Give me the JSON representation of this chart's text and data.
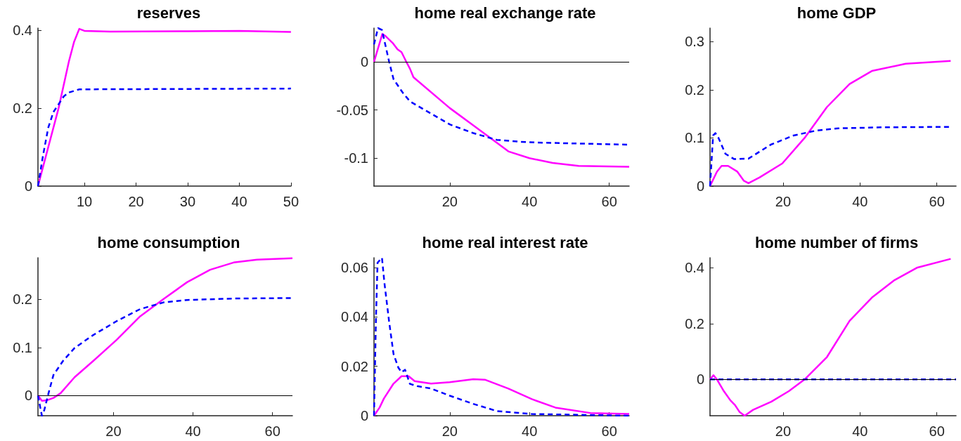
{
  "chart_data": [
    {
      "type": "line",
      "title": "reserves",
      "xlim": [
        1,
        50
      ],
      "xticks": [
        10,
        20,
        30,
        40,
        50
      ],
      "ylim": [
        0,
        0.405
      ],
      "yticks": [
        0,
        0.2,
        0.4
      ],
      "grid": false,
      "marker": "none",
      "series": [
        {
          "color": "#ff00ff",
          "line_style": "solid",
          "x": [
            1,
            3,
            5,
            7,
            8,
            9,
            10,
            15,
            30,
            40,
            50
          ],
          "values": [
            0,
            0.1,
            0.2,
            0.32,
            0.37,
            0.403,
            0.398,
            0.396,
            0.397,
            0.398,
            0.395
          ]
        },
        {
          "color": "#0000ff",
          "line_style": "dashed",
          "x": [
            1,
            2,
            3,
            4,
            5,
            6,
            7,
            9,
            50
          ],
          "values": [
            0,
            0.08,
            0.15,
            0.19,
            0.21,
            0.23,
            0.24,
            0.248,
            0.25
          ]
        }
      ]
    },
    {
      "type": "line",
      "title": "home real exchange rate",
      "xlim": [
        1,
        65
      ],
      "xticks": [
        20,
        40,
        60
      ],
      "ylim": [
        -0.129,
        0.035
      ],
      "yticks": [
        -0.1,
        -0.05,
        0
      ],
      "grid": false,
      "marker": "none",
      "ref_lines": [
        {
          "axis": "y",
          "value": 0,
          "color": "#000000"
        }
      ],
      "series": [
        {
          "color": "#ff00ff",
          "line_style": "solid",
          "x": [
            1,
            3.1,
            3.8,
            5.8,
            6.9,
            7.9,
            9.1,
            10,
            10.9,
            20,
            25.9,
            31.8,
            34.7,
            40,
            45.8,
            52.3,
            65
          ],
          "values": [
            0,
            0.029,
            0.027,
            0.019,
            0.013,
            0.01,
            0,
            -0.007,
            -0.016,
            -0.048,
            -0.066,
            -0.084,
            -0.093,
            -0.1,
            -0.105,
            -0.108,
            -0.109
          ]
        },
        {
          "color": "#0000ff",
          "line_style": "dashed",
          "x": [
            1,
            2,
            3,
            4.8,
            5.9,
            8.2,
            10,
            12.9,
            20,
            25.9,
            31.8,
            37.6,
            43.5,
            65
          ],
          "values": [
            0.018,
            0.035,
            0.033,
            0,
            -0.018,
            -0.032,
            -0.041,
            -0.048,
            -0.065,
            -0.074,
            -0.081,
            -0.083,
            -0.084,
            -0.086
          ]
        }
      ]
    },
    {
      "type": "line",
      "title": "home GDP",
      "xlim": [
        1,
        65
      ],
      "xticks": [
        20,
        40,
        60
      ],
      "ylim": [
        0,
        0.328
      ],
      "yticks": [
        0,
        0.1,
        0.2,
        0.3
      ],
      "grid": false,
      "marker": "none",
      "series": [
        {
          "color": "#ff00ff",
          "line_style": "solid",
          "x": [
            1,
            2.8,
            4,
            5.7,
            8.1,
            9.8,
            11,
            13.9,
            19.8,
            25.6,
            31.4,
            37.3,
            43.1,
            51.9,
            63.6
          ],
          "values": [
            0,
            0.03,
            0.042,
            0.042,
            0.03,
            0.011,
            0.006,
            0.018,
            0.047,
            0.1,
            0.164,
            0.212,
            0.239,
            0.254,
            0.26
          ]
        },
        {
          "color": "#0000ff",
          "line_style": "dashed",
          "x": [
            1,
            1.8,
            2.4,
            3.2,
            5,
            7.3,
            11,
            16.8,
            22.7,
            28.5,
            34.4,
            46,
            63.6
          ],
          "values": [
            0,
            0.105,
            0.11,
            0.1,
            0.067,
            0.056,
            0.057,
            0.086,
            0.105,
            0.115,
            0.12,
            0.122,
            0.123
          ]
        }
      ]
    },
    {
      "type": "line",
      "title": "home consumption",
      "xlim": [
        1,
        65
      ],
      "xticks": [
        20,
        40,
        60
      ],
      "ylim": [
        -0.042,
        0.287
      ],
      "yticks": [
        0,
        0.1,
        0.2
      ],
      "grid": false,
      "marker": "none",
      "ref_lines": [
        {
          "axis": "y",
          "value": 0,
          "color": "#000000"
        }
      ],
      "series": [
        {
          "color": "#ff00ff",
          "line_style": "solid",
          "x": [
            1,
            2,
            3.2,
            4.9,
            6.7,
            10.2,
            14.9,
            20.8,
            26.7,
            32.6,
            38.5,
            44.3,
            50.2,
            56.1,
            65
          ],
          "values": [
            0,
            -0.011,
            -0.01,
            -0.005,
            0.005,
            0.038,
            0.072,
            0.116,
            0.165,
            0.201,
            0.236,
            0.262,
            0.277,
            0.283,
            0.286
          ]
        },
        {
          "color": "#0000ff",
          "line_style": "dashed",
          "x": [
            1,
            1.7,
            2,
            2.6,
            3.5,
            4.9,
            7.3,
            10.2,
            14.9,
            20.8,
            26.7,
            32.6,
            38.5,
            50.2,
            65
          ],
          "values": [
            0,
            -0.03,
            -0.042,
            -0.03,
            0,
            0.043,
            0.072,
            0.099,
            0.126,
            0.155,
            0.18,
            0.194,
            0.199,
            0.202,
            0.203
          ]
        }
      ]
    },
    {
      "type": "line",
      "title": "home real interest rate",
      "xlim": [
        1,
        65
      ],
      "xticks": [
        20,
        40,
        60
      ],
      "ylim": [
        0,
        0.064
      ],
      "yticks": [
        0,
        0.02,
        0.04,
        0.06
      ],
      "grid": false,
      "marker": "none",
      "series": [
        {
          "color": "#ff00ff",
          "line_style": "solid",
          "x": [
            1,
            2.4,
            3.5,
            5.9,
            7.9,
            9.7,
            11.2,
            15.3,
            20,
            25.9,
            28.8,
            34.7,
            40.6,
            46.5,
            55.3,
            65
          ],
          "values": [
            0,
            0.0033,
            0.007,
            0.013,
            0.016,
            0.016,
            0.014,
            0.013,
            0.0136,
            0.0148,
            0.0146,
            0.011,
            0.0067,
            0.0033,
            0.0011,
            0.0007
          ]
        },
        {
          "color": "#0000ff",
          "line_style": "dashed",
          "x": [
            1,
            1.5,
            1.9,
            3,
            3.6,
            4.8,
            5.9,
            7.1,
            7.9,
            8.8,
            10,
            11.8,
            15.3,
            20,
            25.9,
            31.8,
            40.6,
            65
          ],
          "values": [
            0,
            0.04,
            0.062,
            0.064,
            0.054,
            0.038,
            0.025,
            0.0195,
            0.0176,
            0.0186,
            0.0129,
            0.012,
            0.011,
            0.0081,
            0.0048,
            0.0019,
            0.0007,
            0
          ]
        }
      ]
    },
    {
      "type": "line",
      "title": "home number of firms",
      "xlim": [
        1,
        65
      ],
      "xticks": [
        20,
        40,
        60
      ],
      "ylim": [
        -0.13,
        0.436
      ],
      "yticks": [
        0,
        0.2,
        0.4
      ],
      "grid": false,
      "marker": "none",
      "ref_lines": [
        {
          "axis": "y",
          "value": 0,
          "color": "#000000"
        }
      ],
      "series": [
        {
          "color": "#ff00ff",
          "line_style": "solid",
          "x": [
            1,
            1.9,
            2.8,
            4.6,
            6.3,
            7.5,
            8.7,
            10,
            12.2,
            16.9,
            21.5,
            25.6,
            31.4,
            37.3,
            43.1,
            49,
            54.8,
            63.6
          ],
          "values": [
            0,
            0.015,
            0,
            -0.042,
            -0.075,
            -0.092,
            -0.117,
            -0.13,
            -0.109,
            -0.08,
            -0.042,
            0,
            0.08,
            0.21,
            0.293,
            0.356,
            0.4,
            0.432
          ]
        },
        {
          "color": "#0000ff",
          "line_style": "dashed",
          "x": [
            1,
            65
          ],
          "values": [
            0,
            0
          ]
        }
      ]
    }
  ]
}
